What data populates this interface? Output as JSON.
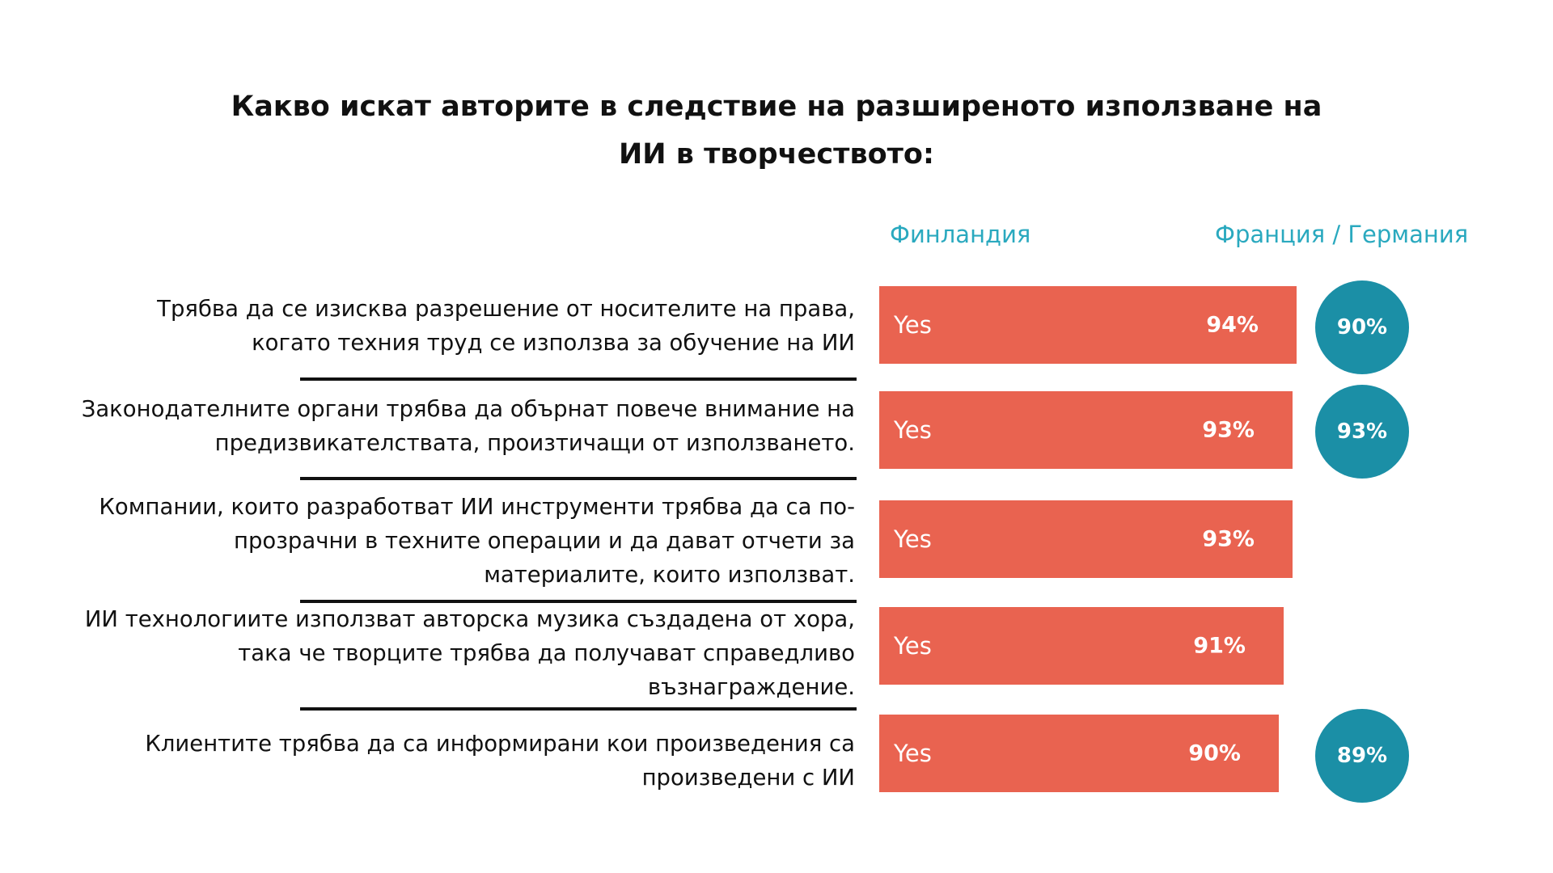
{
  "title": {
    "line1": "Какво искат авторите в следствие на разширеното използване на",
    "line2": "ИИ в творчеството:"
  },
  "chart_data": {
    "type": "bar",
    "title": "Какво искат авторите в следствие на разширеното използване на ИИ в творчеството:",
    "columns": [
      "Финландия",
      "Франция / Германия"
    ],
    "bar_label": "Yes",
    "xlim": [
      0,
      100
    ],
    "colors": {
      "finland_bar": "#e96350",
      "france_germany_circle": "#1b8fa6",
      "column_header": "#2aa9bf"
    },
    "rows": [
      {
        "lines": [
          "Трябва да се изисква разрешение от носителите на права,",
          "когато техния труд се използва за обучение на ИИ"
        ],
        "finland": 94,
        "finland_label": "94%",
        "france_germany": 90,
        "france_germany_label": "90%"
      },
      {
        "lines": [
          "Законодателните органи трябва да обърнат повече внимание на",
          "предизвикателствата, произтичащи от използването."
        ],
        "finland": 93,
        "finland_label": "93%",
        "france_germany": 93,
        "france_germany_label": "93%"
      },
      {
        "lines": [
          "Компании, които разработват ИИ инструменти трябва да са по-",
          "прозрачни в техните операции и да дават отчети за",
          "материалите, които използват."
        ],
        "finland": 93,
        "finland_label": "93%",
        "france_germany": null,
        "france_germany_label": null
      },
      {
        "lines": [
          "ИИ технологиите използват авторска музика създадена от хора,",
          "така че творците трябва да получават справедливо",
          "възнаграждение."
        ],
        "finland": 91,
        "finland_label": "91%",
        "france_germany": null,
        "france_germany_label": null
      },
      {
        "lines": [
          "Клиентите трябва да са информирани кои произведения са",
          "произведени с ИИ"
        ],
        "finland": 90,
        "finland_label": "90%",
        "france_germany": 89,
        "france_germany_label": "89%"
      }
    ]
  }
}
